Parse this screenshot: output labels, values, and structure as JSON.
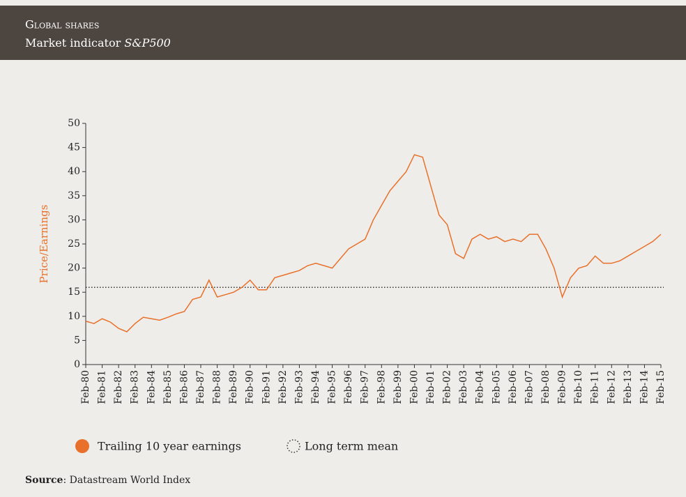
{
  "chart_data": {
    "type": "line",
    "title": "Global shares",
    "subtitle": "Market indicator",
    "subtitle_emphasis": "S&P500",
    "ylabel": "Price/Earnings",
    "source_label": "Source",
    "source": ": Datastream World Index",
    "categories": [
      "Feb-80",
      null,
      "Feb-81",
      null,
      "Feb-82",
      null,
      "Feb-83",
      null,
      "Feb-84",
      null,
      "Feb-85",
      null,
      "Feb-86",
      null,
      "Feb-87",
      null,
      "Feb-88",
      null,
      "Feb-89",
      null,
      "Feb-90",
      null,
      "Feb-91",
      null,
      "Feb-92",
      null,
      "Feb-93",
      null,
      "Feb-94",
      null,
      "Feb-95",
      null,
      "Feb-96",
      null,
      "Feb-97",
      null,
      "Feb-98",
      null,
      "Feb-99",
      null,
      "Feb-00",
      null,
      "Feb-01",
      null,
      "Feb-02",
      null,
      "Feb-03",
      null,
      "Feb-04",
      null,
      "Feb-05",
      null,
      "Feb-06",
      null,
      "Feb-07",
      null,
      "Feb-08",
      null,
      "Feb-09",
      null,
      "Feb-10",
      null,
      "Feb-11",
      null,
      "Feb-12",
      null,
      "Feb-13",
      null,
      "Feb-14",
      null,
      "Feb-15"
    ],
    "series": [
      {
        "name": "Trailing 10 year earnings",
        "color": "#e8702a",
        "values": [
          9,
          8.5,
          9.5,
          8.8,
          7.5,
          6.8,
          8.5,
          9.8,
          9.5,
          9.2,
          9.8,
          10.5,
          11,
          13.5,
          14,
          17.5,
          14,
          14.5,
          15,
          16,
          17.5,
          15.5,
          15.5,
          18,
          18.5,
          19,
          19.5,
          20.5,
          21,
          20.5,
          20,
          22,
          24,
          25,
          26,
          30,
          33,
          36,
          38,
          40,
          43.5,
          43,
          37,
          31,
          29,
          23,
          22,
          26,
          27,
          26,
          26.5,
          25.5,
          26,
          25.5,
          27,
          27,
          24,
          20,
          14,
          18,
          20,
          20.5,
          22.5,
          21,
          21,
          21.5,
          22.5,
          23.5,
          24.5,
          25.5,
          27
        ]
      }
    ],
    "reference_line": {
      "name": "Long term mean",
      "value": 16
    },
    "ylim": [
      0,
      50
    ],
    "yticks": [
      0,
      5,
      10,
      15,
      20,
      25,
      30,
      35,
      40,
      45,
      50
    ]
  }
}
